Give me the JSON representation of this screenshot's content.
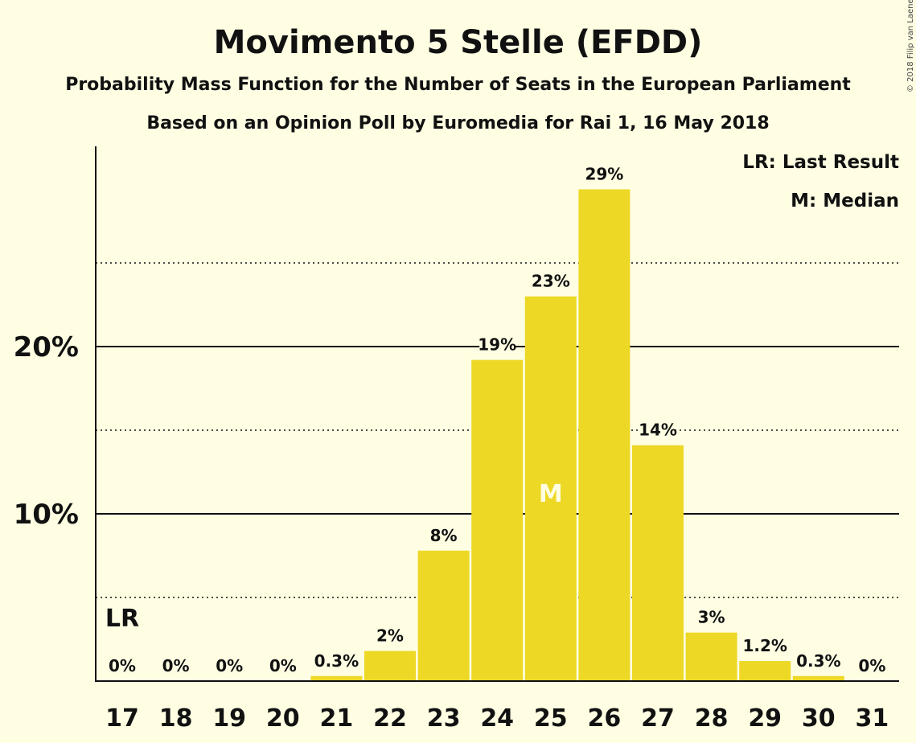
{
  "title": "Movimento 5 Stelle (EFDD)",
  "subtitle1": "Probability Mass Function for the Number of Seats in the European Parliament",
  "subtitle2": "Based on an Opinion Poll by Euromedia for Rai 1, 16 May 2018",
  "copyright": "© 2018 Filip van Laenen",
  "legend": {
    "last_result": "LR: Last Result",
    "median": "M: Median"
  },
  "colors": {
    "bar": "#EDD826",
    "background": "#FFFEE3",
    "text": "#111111"
  },
  "chart_data": {
    "type": "bar",
    "title": "Movimento 5 Stelle (EFDD)",
    "xlabel": "",
    "ylabel": "",
    "categories": [
      "17",
      "18",
      "19",
      "20",
      "21",
      "22",
      "23",
      "24",
      "25",
      "26",
      "27",
      "28",
      "29",
      "30",
      "31"
    ],
    "values": [
      0,
      0,
      0,
      0,
      0.3,
      1.8,
      7.8,
      19.2,
      23,
      29.4,
      14.1,
      2.9,
      1.2,
      0.3,
      0
    ],
    "labels": [
      "0%",
      "0%",
      "0%",
      "0%",
      "0.3%",
      "2%",
      "8%",
      "19%",
      "23%",
      "29%",
      "14%",
      "3%",
      "1.2%",
      "0.3%",
      "0%"
    ],
    "ylim": [
      0,
      32
    ],
    "yticks": [
      10,
      20
    ],
    "ytick_labels": [
      "10%",
      "20%"
    ],
    "minor_gridlines": [
      5,
      15,
      25
    ],
    "grid": true,
    "legend_placement": "top-right",
    "median_category": "25",
    "median_marker": "M",
    "last_result_category": "17",
    "last_result_marker": "LR"
  }
}
